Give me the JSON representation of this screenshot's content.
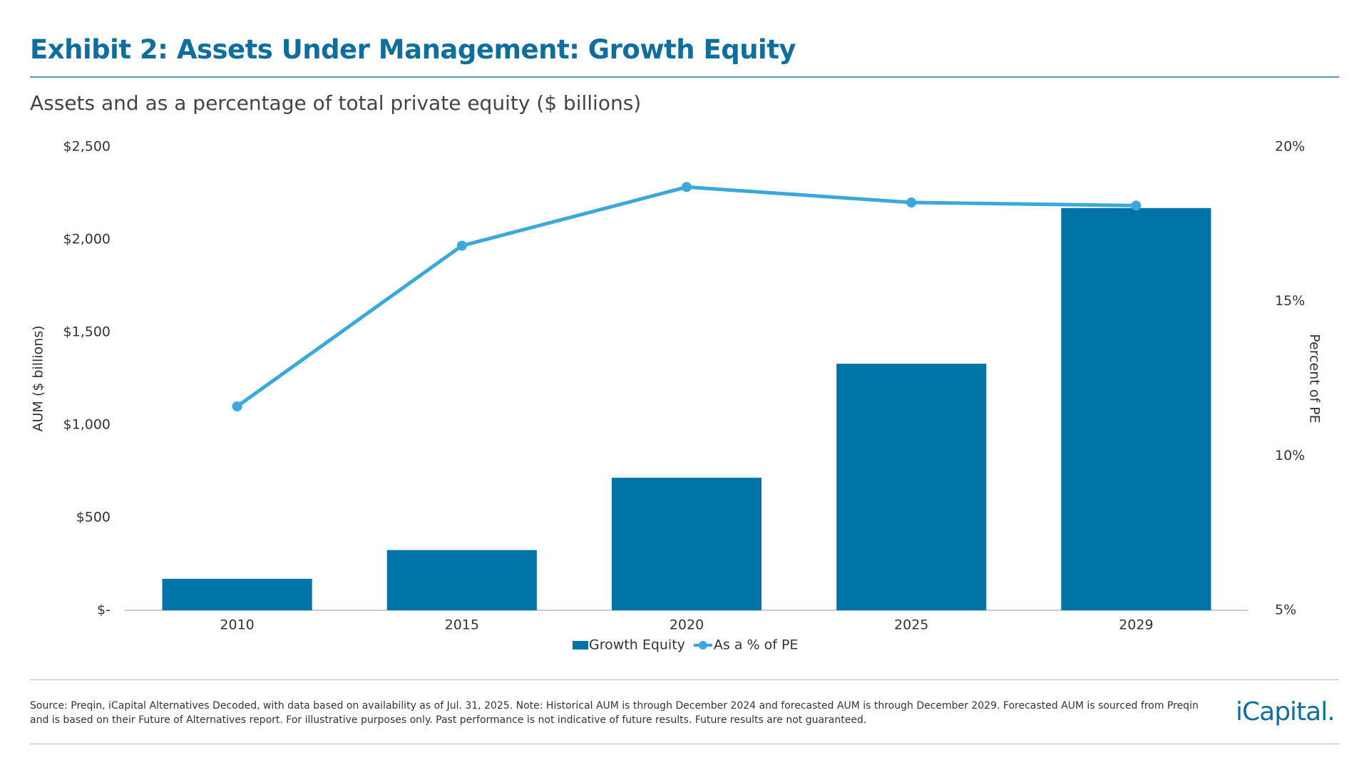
{
  "header": {
    "title": "Exhibit 2: Assets Under Management: Growth Equity"
  },
  "chart_data": {
    "type": "bar",
    "subtitle": "Assets and as a percentage of total private equity ($ billions)",
    "categories": [
      "2010",
      "2015",
      "2020",
      "2025",
      "2029"
    ],
    "series": [
      {
        "name": "Growth Equity",
        "type": "bar",
        "color": "#0073a8",
        "values": [
          170,
          325,
          715,
          1330,
          2170
        ]
      },
      {
        "name": "As a % of PE",
        "type": "line",
        "axis": "y2",
        "color": "#3aa8dc",
        "values": [
          11.6,
          16.8,
          18.7,
          18.2,
          18.1
        ]
      }
    ],
    "y_label": "AUM ($ billions)",
    "y2_label": "Percent of PE",
    "ylim": [
      0,
      2500
    ],
    "yticks": [
      {
        "value": 0,
        "label": "$-"
      },
      {
        "value": 500,
        "label": "$500"
      },
      {
        "value": 1000,
        "label": "$1,000"
      },
      {
        "value": 1500,
        "label": "$1,500"
      },
      {
        "value": 2000,
        "label": "$2,000"
      },
      {
        "value": 2500,
        "label": "$2,500"
      }
    ],
    "y2lim": [
      5,
      20
    ],
    "y2ticks": [
      {
        "value": 5,
        "label": "5%"
      },
      {
        "value": 10,
        "label": "10%"
      },
      {
        "value": 15,
        "label": "15%"
      },
      {
        "value": 20,
        "label": "20%"
      }
    ],
    "grid": false
  },
  "footer": {
    "source": "Source: Preqin, iCapital Alternatives Decoded, with data based on availability as of Jul. 31, 2025. Note: Historical AUM is through December 2024 and forecasted AUM is through December 2029. Forecasted AUM is sourced from Preqin and is based on their Future of Alternatives report. For illustrative purposes only. Past performance is not indicative of future results. Future results are not guaranteed.",
    "logo": "iCapital."
  }
}
